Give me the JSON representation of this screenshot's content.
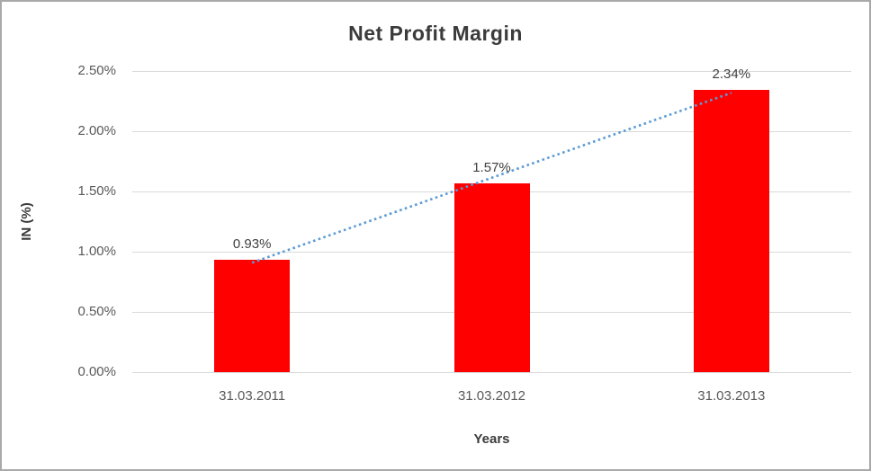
{
  "chart_data": {
    "type": "bar",
    "title": "Net Profit Margin",
    "xlabel": "Years",
    "ylabel": "IN (%)",
    "categories": [
      "31.03.2011",
      "31.03.2012",
      "31.03.2013"
    ],
    "values": [
      0.93,
      1.57,
      2.34
    ],
    "data_labels": [
      "0.93%",
      "1.57%",
      "2.34%"
    ],
    "ylim": [
      0,
      2.5
    ],
    "ytick_labels": [
      "0.00%",
      "0.50%",
      "1.00%",
      "1.50%",
      "2.00%",
      "2.50%"
    ],
    "grid": true,
    "legend": "none",
    "bar_color": "#ff0000",
    "gridline_color": "#d9d9d9",
    "trendline": {
      "type": "linear",
      "style": "dotted",
      "color": "#5b9bd5"
    }
  }
}
